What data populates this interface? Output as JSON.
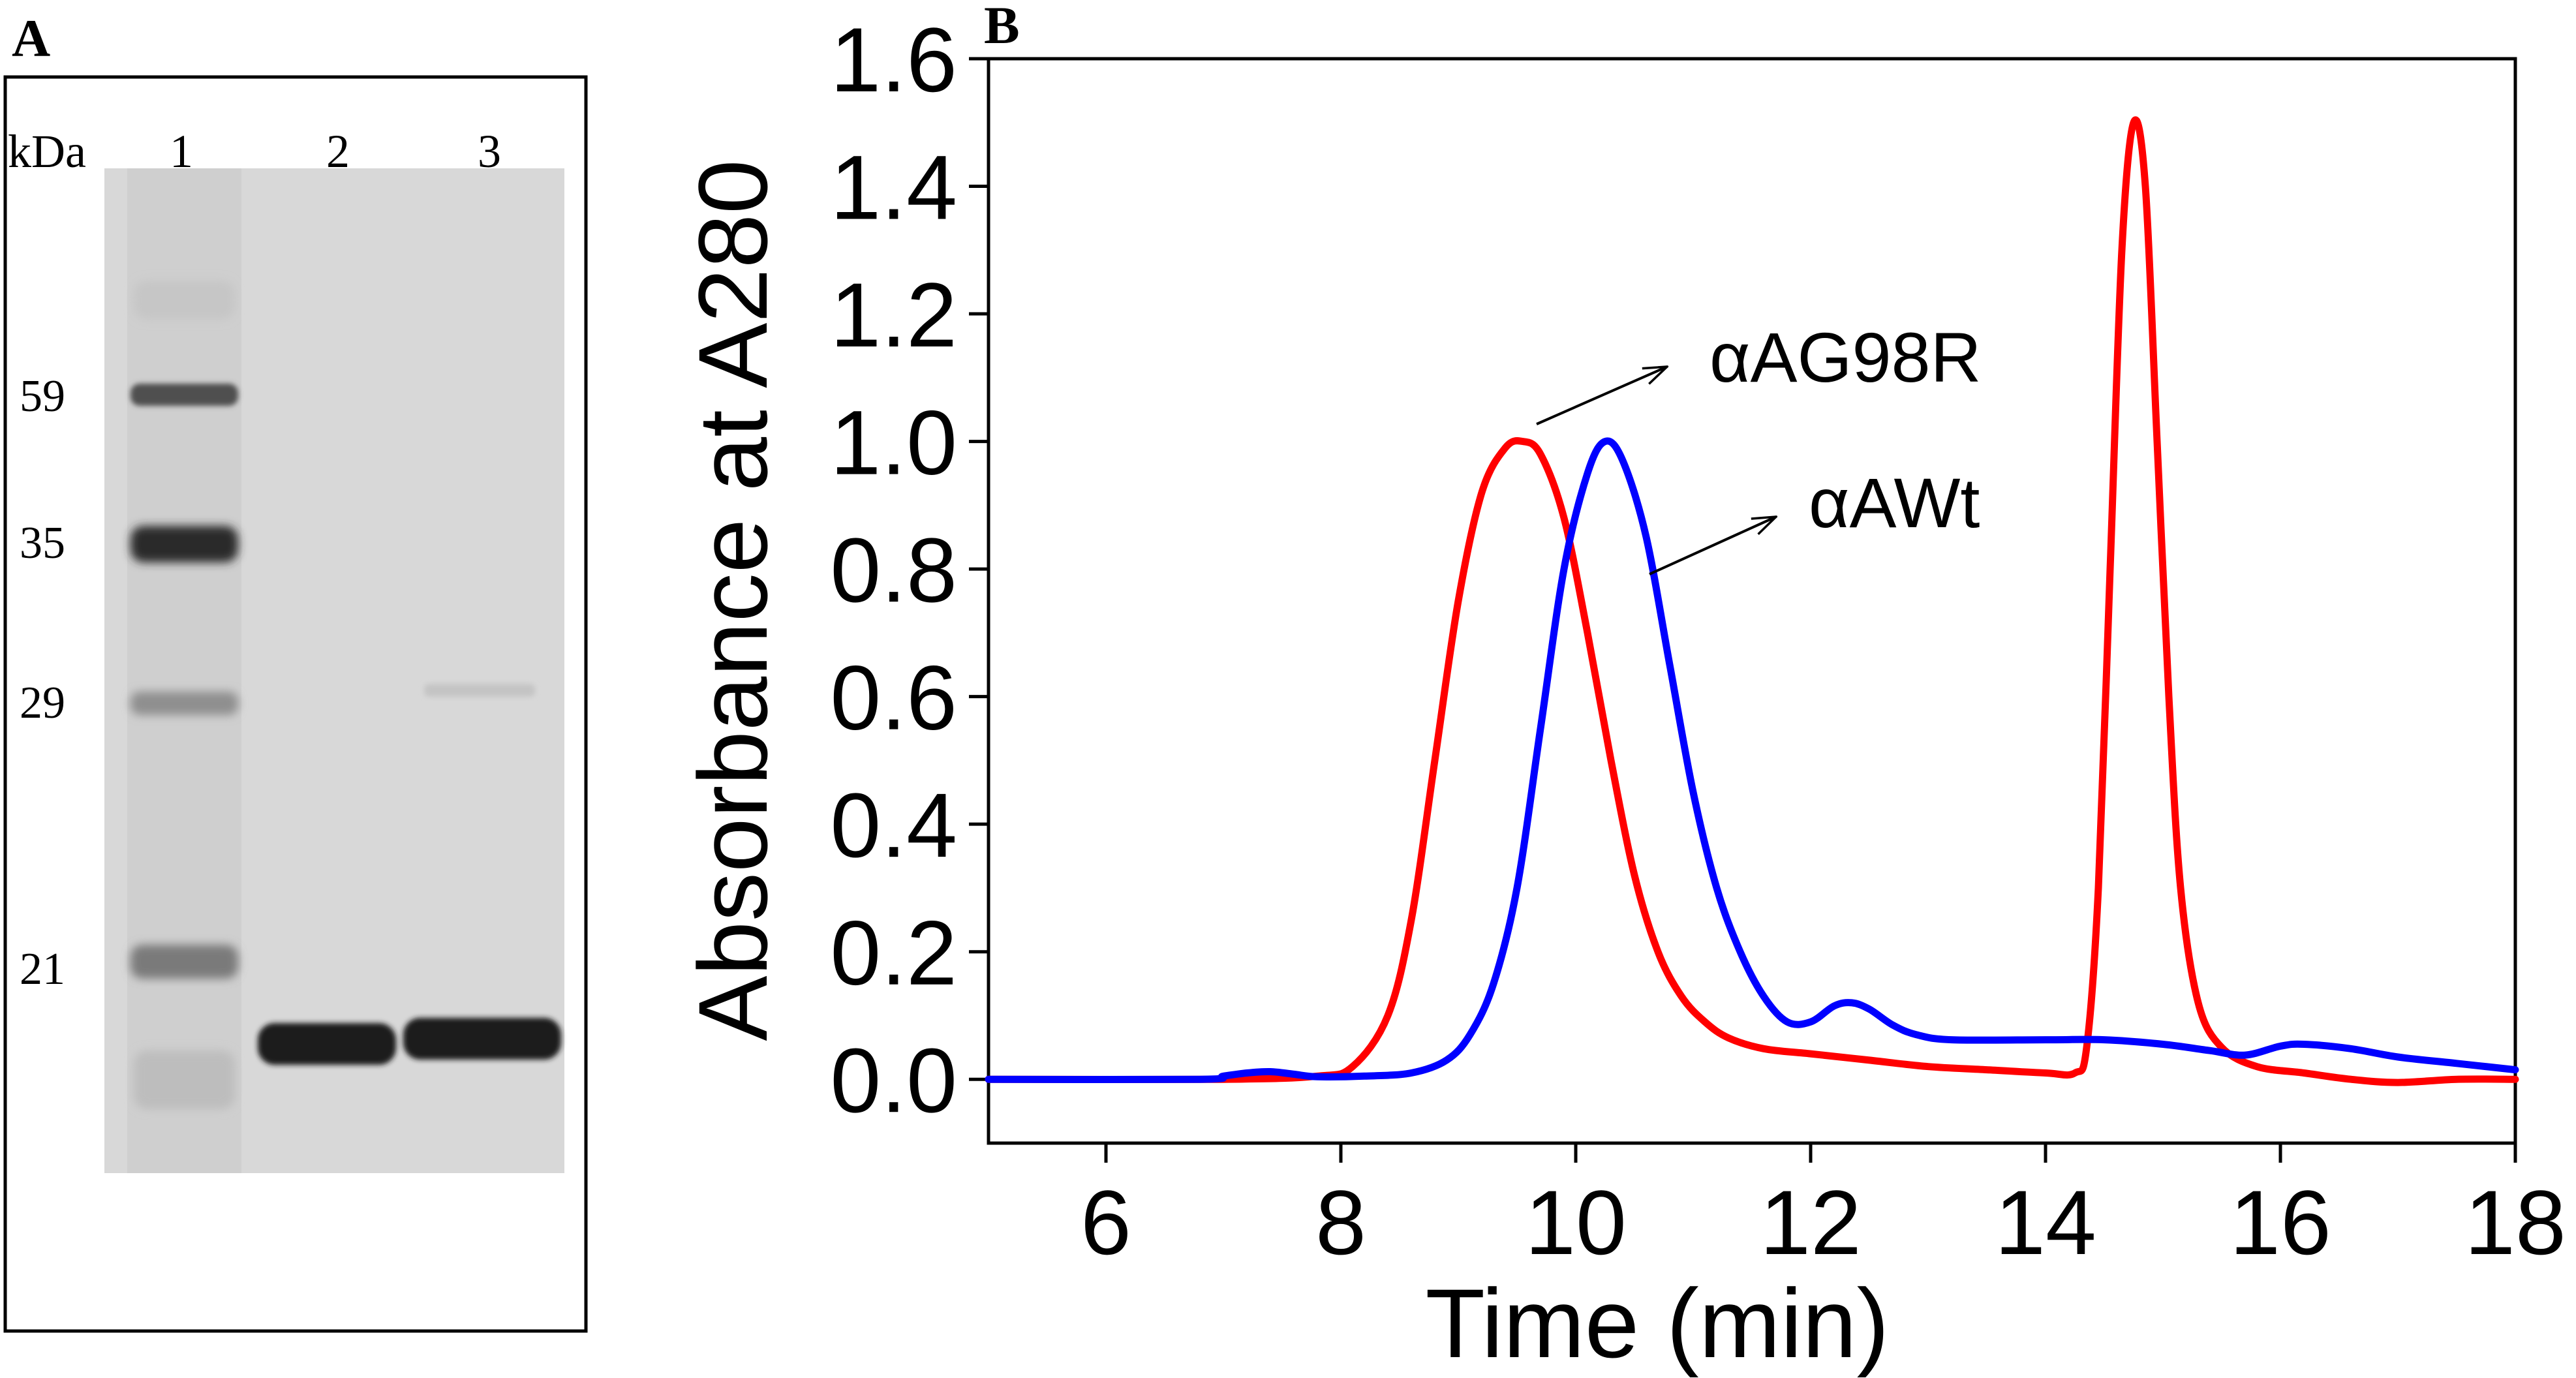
{
  "panel_a": {
    "label": "A",
    "unit_label": "kDa",
    "lanes": [
      "1",
      "2",
      "3"
    ],
    "markers": [
      "59",
      "35",
      "29",
      "21"
    ]
  },
  "chart_data": {
    "type": "line",
    "panel_label": "B",
    "title": "",
    "xlabel": "Time (min)",
    "ylabel": "Absorbance at A280",
    "xlim": [
      5,
      18
    ],
    "ylim": [
      -0.1,
      1.6
    ],
    "xticks": [
      6,
      8,
      10,
      12,
      14,
      16,
      18
    ],
    "yticks": [
      "0.0",
      "0.2",
      "0.4",
      "0.6",
      "0.8",
      "1.0",
      "1.2",
      "1.4",
      "1.6"
    ],
    "grid": false,
    "annotations": [
      {
        "text": "αAG98R",
        "points_to": "red"
      },
      {
        "text": "αAWt",
        "points_to": "blue"
      }
    ],
    "series": [
      {
        "color": "#ff0000",
        "points": [
          [
            5,
            0
          ],
          [
            7,
            0
          ],
          [
            7.8,
            0.005
          ],
          [
            8.1,
            0.02
          ],
          [
            8.4,
            0.1
          ],
          [
            8.6,
            0.25
          ],
          [
            8.8,
            0.5
          ],
          [
            9.0,
            0.75
          ],
          [
            9.2,
            0.92
          ],
          [
            9.4,
            0.99
          ],
          [
            9.55,
            1.0
          ],
          [
            9.7,
            0.98
          ],
          [
            9.9,
            0.88
          ],
          [
            10.1,
            0.7
          ],
          [
            10.3,
            0.5
          ],
          [
            10.5,
            0.32
          ],
          [
            10.7,
            0.2
          ],
          [
            10.9,
            0.13
          ],
          [
            11.1,
            0.09
          ],
          [
            11.3,
            0.065
          ],
          [
            11.6,
            0.048
          ],
          [
            12.0,
            0.04
          ],
          [
            12.5,
            0.03
          ],
          [
            13.0,
            0.02
          ],
          [
            13.5,
            0.015
          ],
          [
            14.0,
            0.01
          ],
          [
            14.25,
            0.01
          ],
          [
            14.35,
            0.05
          ],
          [
            14.45,
            0.3
          ],
          [
            14.55,
            0.8
          ],
          [
            14.65,
            1.3
          ],
          [
            14.75,
            1.5
          ],
          [
            14.85,
            1.4
          ],
          [
            14.95,
            1.0
          ],
          [
            15.05,
            0.6
          ],
          [
            15.15,
            0.3
          ],
          [
            15.3,
            0.12
          ],
          [
            15.5,
            0.05
          ],
          [
            15.8,
            0.02
          ],
          [
            16.2,
            0.01
          ],
          [
            16.6,
            0.0
          ],
          [
            17.0,
            -0.005
          ],
          [
            17.5,
            0.0
          ],
          [
            18,
            0.0
          ]
        ]
      },
      {
        "color": "#0000ff",
        "points": [
          [
            5,
            0
          ],
          [
            6.8,
            0
          ],
          [
            7.0,
            0.005
          ],
          [
            7.2,
            0.01
          ],
          [
            7.4,
            0.012
          ],
          [
            7.6,
            0.008
          ],
          [
            7.8,
            0.004
          ],
          [
            8.2,
            0.005
          ],
          [
            8.6,
            0.01
          ],
          [
            8.9,
            0.03
          ],
          [
            9.1,
            0.07
          ],
          [
            9.3,
            0.15
          ],
          [
            9.5,
            0.3
          ],
          [
            9.7,
            0.55
          ],
          [
            9.9,
            0.8
          ],
          [
            10.1,
            0.95
          ],
          [
            10.25,
            1.0
          ],
          [
            10.4,
            0.97
          ],
          [
            10.6,
            0.85
          ],
          [
            10.8,
            0.65
          ],
          [
            11.0,
            0.45
          ],
          [
            11.2,
            0.3
          ],
          [
            11.4,
            0.2
          ],
          [
            11.6,
            0.13
          ],
          [
            11.8,
            0.09
          ],
          [
            12.0,
            0.09
          ],
          [
            12.2,
            0.115
          ],
          [
            12.35,
            0.12
          ],
          [
            12.5,
            0.11
          ],
          [
            12.7,
            0.085
          ],
          [
            12.9,
            0.07
          ],
          [
            13.2,
            0.062
          ],
          [
            14.0,
            0.062
          ],
          [
            14.5,
            0.062
          ],
          [
            15.0,
            0.055
          ],
          [
            15.4,
            0.045
          ],
          [
            15.7,
            0.038
          ],
          [
            16.0,
            0.052
          ],
          [
            16.2,
            0.055
          ],
          [
            16.6,
            0.048
          ],
          [
            17.0,
            0.035
          ],
          [
            17.5,
            0.025
          ],
          [
            18,
            0.015
          ]
        ]
      }
    ]
  }
}
